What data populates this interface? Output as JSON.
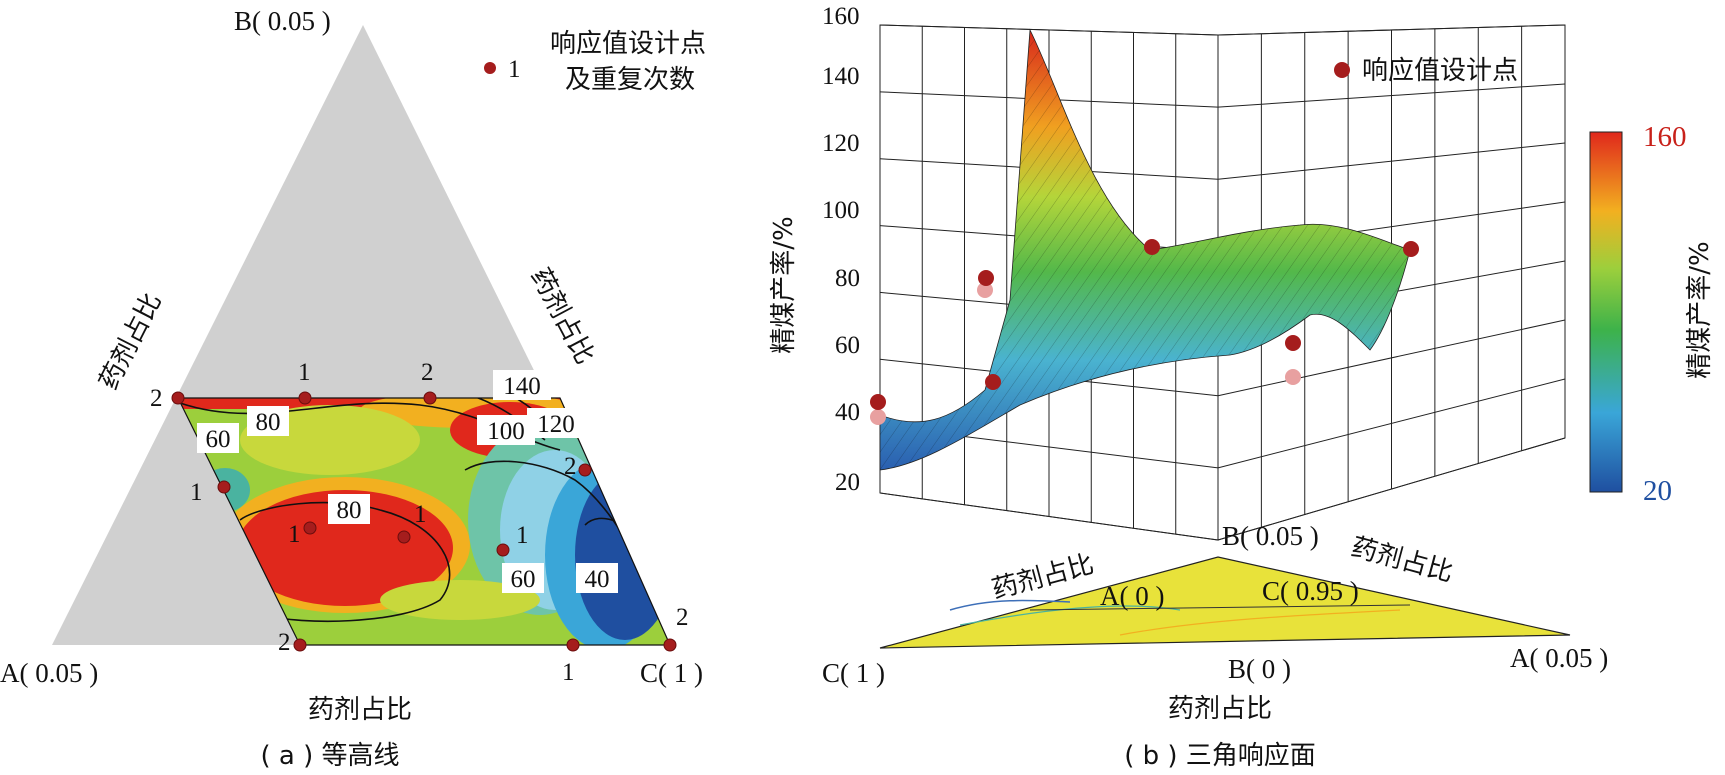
{
  "panel_a": {
    "caption": "( a ) 等高线",
    "vertex_A": "A( 0.05 )",
    "vertex_B": "B( 0.05 )",
    "vertex_C": "C( 1 )",
    "axis_label_left": "药剂占比",
    "axis_label_right": "药剂占比",
    "axis_label_bottom": "药剂占比",
    "legend_marker_label": "1",
    "legend_title_line1": "响应值设计点",
    "legend_title_line2": "及重复次数",
    "contour_labels": [
      "140",
      "120",
      "100",
      "80",
      "60",
      "80",
      "60",
      "40"
    ],
    "point_labels": [
      "2",
      "1",
      "2",
      "2",
      "1",
      "1",
      "1",
      "1",
      "2",
      "1",
      "2"
    ]
  },
  "panel_b": {
    "caption": "( b ) 三角响应面",
    "zlabel": "精煤产率/%",
    "z_ticks": [
      "20",
      "40",
      "60",
      "80",
      "100",
      "120",
      "140",
      "160"
    ],
    "legend_label": "响应值设计点",
    "colorbar_title": "精煤产率/%",
    "colorbar_max": "160",
    "colorbar_min": "20",
    "base_B_top": "B( 0.05 )",
    "base_C": "C( 1 )",
    "base_B_bottom": "B( 0 )",
    "base_A": "A( 0.05 )",
    "base_A0": "A( 0 )",
    "base_C095": "C( 0.95 )",
    "base_label_1": "药剂占比",
    "base_label_2": "药剂占比",
    "base_label_bottom": "药剂占比"
  },
  "colors": {
    "design_point": "#a51d1d",
    "gray_region": "#d0d0d0",
    "high": "#e0281c",
    "low": "#1f4fa0"
  },
  "chart_data": [
    {
      "type": "heatmap",
      "title": "( a ) 等高线",
      "description_axes": [
        "A",
        "B",
        "C"
      ],
      "vertex_ranges": {
        "A": 0.05,
        "B": 0.05,
        "C": 1
      },
      "contour_levels": [
        40,
        60,
        80,
        100,
        120,
        140
      ],
      "design_point_replicates": [
        2,
        1,
        2,
        2,
        1,
        1,
        1,
        1,
        2,
        1,
        2
      ]
    },
    {
      "type": "surface",
      "title": "( b ) 三角响应面",
      "zlabel": "精煤产率/%",
      "zlim": [
        20,
        160
      ],
      "colorbar_range": [
        20,
        160
      ]
    }
  ]
}
